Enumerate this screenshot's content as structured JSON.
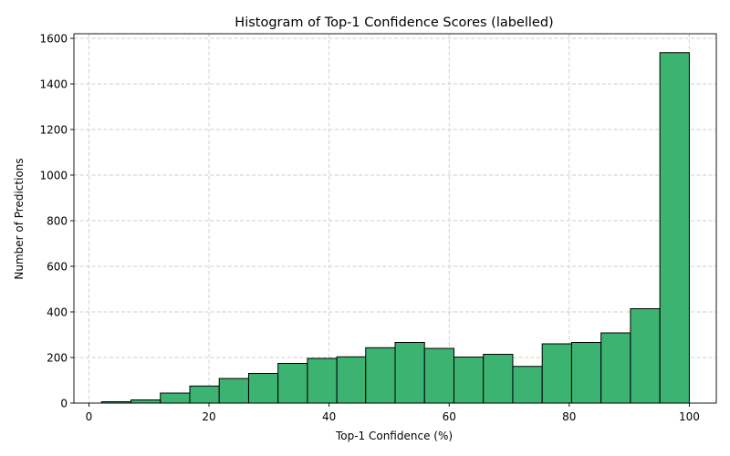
{
  "chart_data": {
    "type": "bar",
    "title": "Histogram of Top-1 Confidence Scores (labelled)",
    "xlabel": "Top-1 Confidence (%)",
    "ylabel": "Number of Predictions",
    "xlim": [
      -2.5,
      104.5
    ],
    "ylim": [
      0,
      1620
    ],
    "xticks": [
      0,
      20,
      40,
      60,
      80,
      100
    ],
    "yticks": [
      0,
      200,
      400,
      600,
      800,
      1000,
      1200,
      1400,
      1600
    ],
    "grid": true,
    "bar_color": "#3cb371",
    "bin_edges": [
      2.1,
      7.0,
      11.9,
      16.8,
      21.7,
      26.6,
      31.5,
      36.4,
      41.3,
      46.1,
      51.0,
      55.9,
      60.8,
      65.7,
      70.6,
      75.5,
      80.4,
      85.3,
      90.2,
      95.1,
      100.0
    ],
    "values": [
      6,
      14,
      44,
      75,
      108,
      130,
      174,
      196,
      203,
      243,
      266,
      240,
      202,
      214,
      161,
      260,
      266,
      308,
      414,
      1537
    ]
  }
}
